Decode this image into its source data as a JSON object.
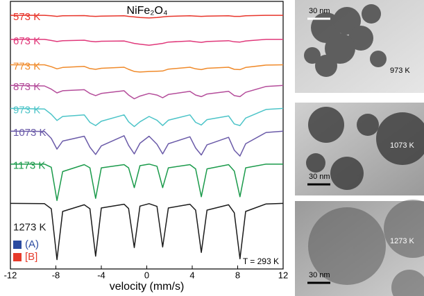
{
  "chart_data": {
    "type": "line",
    "title": "NiFe₂O₄",
    "x_label": "velocity (mm/s)",
    "xlim": [
      -12,
      12
    ],
    "xticks": [
      -12,
      -8,
      -4,
      0,
      4,
      8,
      12
    ],
    "ylim": [
      0,
      100
    ],
    "annotation": "T = 293 K",
    "x": [
      -12,
      -9,
      -8.4,
      -7.9,
      -7.4,
      -5.5,
      -5,
      -4.5,
      -4,
      -2,
      -1.6,
      -1.1,
      -0.6,
      0.2,
      0.9,
      1.4,
      1.9,
      3.8,
      4.3,
      4.8,
      5.3,
      7.2,
      7.7,
      8.2,
      8.7,
      10.5,
      12
    ],
    "series": [
      {
        "name": "573 K",
        "color": "#e8342a",
        "values": [
          94.8,
          94.8,
          94.6,
          94.4,
          94.6,
          94.7,
          94.5,
          94.4,
          94.5,
          94.6,
          94.4,
          94.2,
          94.0,
          93.8,
          94.0,
          94.2,
          94.4,
          94.6,
          94.5,
          94.4,
          94.5,
          94.6,
          94.4,
          94.4,
          94.6,
          94.8,
          94.8
        ]
      },
      {
        "name": "673 K",
        "color": "#e0387a",
        "values": [
          85.8,
          85.8,
          85.4,
          85.0,
          85.3,
          85.5,
          85.1,
          84.9,
          85.1,
          85.2,
          84.8,
          84.3,
          84.0,
          83.6,
          84.0,
          84.3,
          84.8,
          85.2,
          84.9,
          84.7,
          85.0,
          85.3,
          84.9,
          84.8,
          85.2,
          85.8,
          85.8
        ]
      },
      {
        "name": "773 K",
        "color": "#f08a2a",
        "values": [
          76.3,
          76.3,
          75.6,
          74.8,
          75.3,
          75.7,
          74.9,
          74.6,
          75.0,
          75.4,
          74.6,
          73.8,
          73.6,
          73.8,
          73.9,
          74.0,
          74.7,
          75.4,
          74.8,
          74.5,
          75.0,
          75.4,
          74.6,
          74.5,
          75.3,
          76.2,
          76.3
        ]
      },
      {
        "name": "873 K",
        "color": "#b44c9a",
        "values": [
          68.6,
          68.4,
          67.2,
          65.8,
          66.6,
          67.0,
          65.6,
          64.8,
          65.6,
          66.6,
          65.0,
          63.6,
          64.6,
          65.6,
          65.0,
          64.0,
          65.2,
          66.4,
          65.0,
          64.4,
          65.4,
          66.4,
          64.8,
          64.4,
          66.0,
          68.2,
          68.6
        ]
      },
      {
        "name": "973 K",
        "color": "#4cc4c8",
        "values": [
          60,
          59.8,
          57.8,
          55.5,
          57.0,
          57.6,
          54.8,
          53.6,
          55.2,
          57.6,
          55.0,
          53.2,
          55.0,
          57.0,
          55.6,
          53.6,
          55.6,
          57.6,
          54.8,
          53.8,
          55.8,
          57.2,
          54.2,
          53.6,
          56.4,
          59.6,
          60
        ]
      },
      {
        "name": "1073 K",
        "color": "#6a5aa8",
        "values": [
          51.5,
          51.4,
          48.8,
          44.8,
          47.8,
          49.6,
          45.5,
          42.8,
          46.0,
          49.8,
          46.2,
          43.0,
          47.0,
          49.6,
          46.6,
          43.0,
          46.8,
          49.4,
          45.2,
          42.6,
          46.4,
          49.2,
          44.4,
          42.2,
          46.8,
          51.0,
          51.5
        ]
      },
      {
        "name": "1173 K",
        "color": "#1a9a4a",
        "values": [
          39.2,
          39.2,
          38.0,
          25.6,
          36.4,
          39.0,
          37.8,
          26.4,
          37.8,
          39.0,
          37.8,
          30.4,
          38.6,
          39.2,
          38.4,
          30.4,
          37.8,
          39.0,
          37.4,
          27.0,
          37.4,
          39.0,
          36.6,
          27.0,
          37.8,
          39.2,
          39.2
        ]
      },
      {
        "name": "1273 K",
        "color": "#1a1a1a",
        "values": [
          24.5,
          24.4,
          22.5,
          3.5,
          21.5,
          24.0,
          22.5,
          4.8,
          22.8,
          24.2,
          22.6,
          8.0,
          23.5,
          24.4,
          23.4,
          8.2,
          22.8,
          24.2,
          22.0,
          6.2,
          22.0,
          24.0,
          21.0,
          3.8,
          21.5,
          24.3,
          24.5
        ]
      }
    ],
    "components": [
      {
        "name": "(A)",
        "color": "#2a4aa0"
      },
      {
        "name": "[B]",
        "color": "#e63a2a"
      }
    ]
  },
  "images": [
    {
      "scale_bar": "30 nm",
      "label": "973 K"
    },
    {
      "scale_bar": "30 nm",
      "label": "1073 K"
    },
    {
      "scale_bar": "30 nm",
      "label": "1273 K"
    }
  ]
}
